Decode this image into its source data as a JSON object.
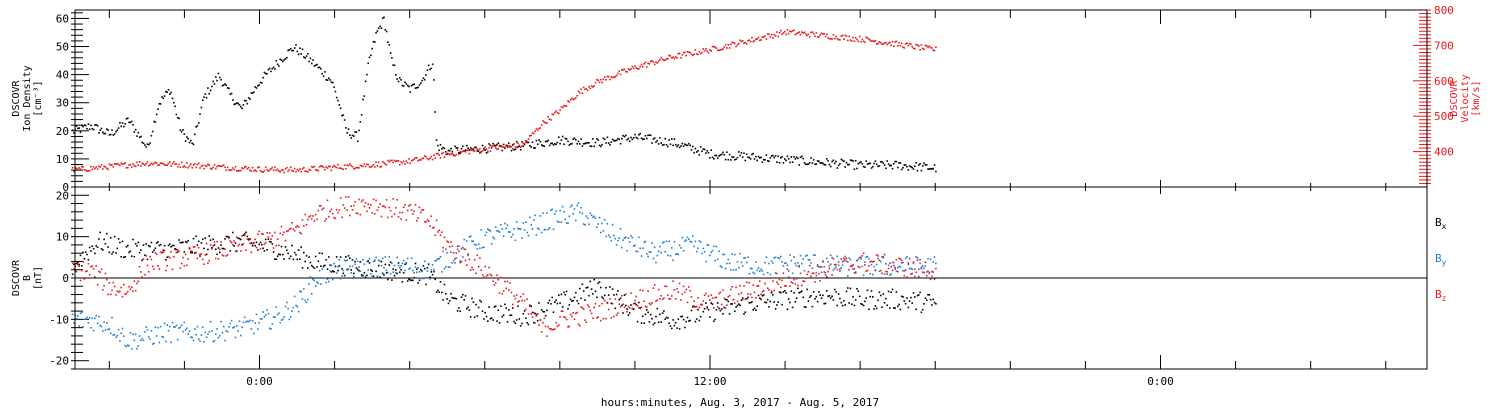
{
  "chart_data": [
    {
      "type": "scatter",
      "xlabel": "hours:minutes, Aug.  3, 2017 - Aug.  5, 2017",
      "x_ticks": [
        "0:00",
        "12:00",
        "0:00"
      ],
      "left_ylabel": [
        "DSCOVR",
        "Ion Density",
        "[cm⁻³]"
      ],
      "right_ylabel": [
        "DSCOVR",
        "Velocity",
        "[km/s]"
      ],
      "left_ylim": [
        0,
        63
      ],
      "right_ylim": [
        300,
        800
      ],
      "left_yticks": [
        "0",
        "10",
        "20",
        "30",
        "40",
        "50",
        "60"
      ],
      "right_yticks": [
        "400",
        "500",
        "600",
        "700",
        "800"
      ],
      "colors": {
        "density": "#000000",
        "velocity": "#e8191c"
      },
      "series": [
        {
          "axis": "left",
          "color": "#000000",
          "points": [
            [
              -5.0,
              20
            ],
            [
              -4.5,
              22
            ],
            [
              -4.0,
              19
            ],
            [
              -3.5,
              24
            ],
            [
              -3.0,
              14
            ],
            [
              -2.7,
              30
            ],
            [
              -2.4,
              35
            ],
            [
              -2.1,
              20
            ],
            [
              -1.8,
              15
            ],
            [
              -1.5,
              32
            ],
            [
              -1.1,
              40
            ],
            [
              -0.8,
              33
            ],
            [
              -0.5,
              28
            ],
            [
              0.0,
              38
            ],
            [
              0.5,
              45
            ],
            [
              0.9,
              50
            ],
            [
              1.2,
              47
            ],
            [
              1.6,
              42
            ],
            [
              1.9,
              38
            ],
            [
              2.1,
              30
            ],
            [
              2.3,
              20
            ],
            [
              2.6,
              18
            ],
            [
              2.9,
              45
            ],
            [
              3.1,
              55
            ],
            [
              3.3,
              60
            ],
            [
              3.5,
              45
            ],
            [
              3.7,
              38
            ],
            [
              4.0,
              35
            ],
            [
              4.3,
              38
            ],
            [
              4.6,
              45
            ],
            [
              4.7,
              15
            ],
            [
              5.0,
              13
            ],
            [
              6.0,
              14
            ],
            [
              7.0,
              15
            ],
            [
              8.0,
              17
            ],
            [
              9.0,
              16
            ],
            [
              10.0,
              18
            ],
            [
              11.0,
              16
            ],
            [
              12.0,
              12
            ],
            [
              13.0,
              11
            ],
            [
              14.0,
              10
            ],
            [
              15.0,
              9
            ],
            [
              16.0,
              8
            ],
            [
              17.0,
              8
            ],
            [
              18.0,
              7
            ]
          ]
        },
        {
          "axis": "right",
          "color": "#e8191c",
          "points": [
            [
              -5.0,
              350
            ],
            [
              -4.0,
              360
            ],
            [
              -3.0,
              370
            ],
            [
              -2.0,
              365
            ],
            [
              -1.0,
              358
            ],
            [
              0.0,
              352
            ],
            [
              1.0,
              350
            ],
            [
              2.0,
              358
            ],
            [
              3.0,
              365
            ],
            [
              4.0,
              375
            ],
            [
              5.0,
              395
            ],
            [
              6.0,
              410
            ],
            [
              7.0,
              420
            ],
            [
              7.5,
              480
            ],
            [
              8.0,
              520
            ],
            [
              8.5,
              570
            ],
            [
              9.0,
              600
            ],
            [
              9.5,
              620
            ],
            [
              10.0,
              640
            ],
            [
              11.0,
              670
            ],
            [
              12.0,
              690
            ],
            [
              13.0,
              715
            ],
            [
              14.0,
              740
            ],
            [
              15.0,
              730
            ],
            [
              16.0,
              720
            ],
            [
              17.0,
              705
            ],
            [
              18.0,
              690
            ]
          ]
        }
      ]
    },
    {
      "type": "scatter",
      "ylabel": [
        "DSCOVR",
        "B",
        "[nT]"
      ],
      "ylim": [
        -22,
        22
      ],
      "yticks": [
        "-20",
        "-10",
        "0",
        "10",
        "20"
      ],
      "zero_line": true,
      "legend": [
        {
          "label": "B",
          "subscript": "x",
          "color": "#000000"
        },
        {
          "label": "B",
          "subscript": "y",
          "color": "#1f7fd6"
        },
        {
          "label": "B",
          "subscript": "z",
          "color": "#e8191c"
        }
      ],
      "series": [
        {
          "name": "Bx",
          "color": "#000000",
          "points": [
            [
              -5.0,
              3
            ],
            [
              -4.3,
              9
            ],
            [
              -3.5,
              7
            ],
            [
              -2.5,
              7
            ],
            [
              -1.5,
              8
            ],
            [
              -0.5,
              9
            ],
            [
              0.5,
              7
            ],
            [
              1.5,
              4
            ],
            [
              2.5,
              3
            ],
            [
              3.5,
              2
            ],
            [
              4.5,
              1
            ],
            [
              5.0,
              -5
            ],
            [
              6.0,
              -8
            ],
            [
              7.0,
              -9
            ],
            [
              8.0,
              -6
            ],
            [
              9.0,
              -2
            ],
            [
              10.0,
              -8
            ],
            [
              11.0,
              -10
            ],
            [
              12.0,
              -8
            ],
            [
              13.0,
              -6
            ],
            [
              14.0,
              -5
            ],
            [
              15.0,
              -4
            ],
            [
              16.0,
              -5
            ],
            [
              17.0,
              -5
            ],
            [
              18.0,
              -6
            ]
          ]
        },
        {
          "name": "By",
          "color": "#1f7fd6",
          "points": [
            [
              -5.0,
              -10
            ],
            [
              -4.5,
              -10
            ],
            [
              -4.0,
              -11
            ],
            [
              -3.5,
              -15
            ],
            [
              -3.0,
              -14
            ],
            [
              -2.5,
              -13
            ],
            [
              -1.5,
              -13
            ],
            [
              -0.5,
              -12
            ],
            [
              0.5,
              -9
            ],
            [
              1.0,
              -6
            ],
            [
              1.5,
              0
            ],
            [
              2.0,
              2
            ],
            [
              3.0,
              3
            ],
            [
              4.0,
              3
            ],
            [
              4.5,
              2
            ],
            [
              5.0,
              5
            ],
            [
              6.0,
              10
            ],
            [
              7.0,
              12
            ],
            [
              8.0,
              15
            ],
            [
              8.5,
              16
            ],
            [
              9.5,
              10
            ],
            [
              10.5,
              6
            ],
            [
              11.5,
              8
            ],
            [
              12.5,
              4
            ],
            [
              13.5,
              3
            ],
            [
              14.5,
              4
            ],
            [
              15.5,
              3
            ],
            [
              16.5,
              3
            ],
            [
              17.5,
              3
            ],
            [
              18.0,
              3
            ]
          ]
        },
        {
          "name": "Bz",
          "color": "#e8191c",
          "points": [
            [
              -5.0,
              2
            ],
            [
              -4.5,
              2
            ],
            [
              -4.0,
              -2
            ],
            [
              -3.5,
              -3
            ],
            [
              -3.0,
              4
            ],
            [
              -2.0,
              5
            ],
            [
              -1.0,
              7
            ],
            [
              0.0,
              9
            ],
            [
              0.5,
              10
            ],
            [
              1.0,
              12
            ],
            [
              1.5,
              16
            ],
            [
              2.0,
              17
            ],
            [
              2.5,
              18
            ],
            [
              3.0,
              18
            ],
            [
              3.5,
              17
            ],
            [
              4.0,
              16
            ],
            [
              4.5,
              14
            ],
            [
              5.0,
              8
            ],
            [
              6.0,
              2
            ],
            [
              7.0,
              -6
            ],
            [
              7.5,
              -12
            ],
            [
              8.0,
              -10
            ],
            [
              9.0,
              -8
            ],
            [
              10.0,
              -5
            ],
            [
              11.0,
              -3
            ],
            [
              12.0,
              -6
            ],
            [
              13.0,
              -3
            ],
            [
              14.0,
              0
            ],
            [
              15.0,
              2
            ],
            [
              16.0,
              4
            ],
            [
              17.0,
              3
            ],
            [
              18.0,
              2
            ]
          ]
        }
      ]
    }
  ]
}
